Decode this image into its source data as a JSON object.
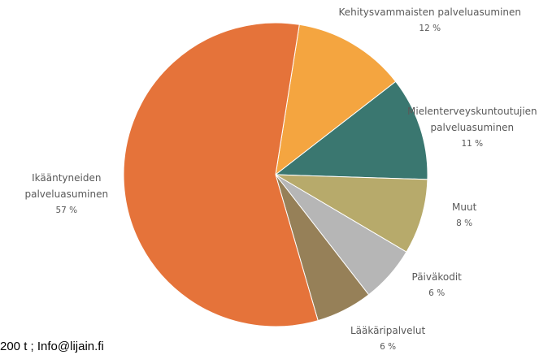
{
  "chart_data": {
    "type": "pie",
    "title": "",
    "slices": [
      {
        "label": "Kehitysvammaisten palveluasuminen",
        "lines": [
          "Kehitysvammaisten palveluasuminen"
        ],
        "value": 12,
        "value_label": "12 %",
        "color": "#f4a540"
      },
      {
        "label": "Mielenterveyskuntoutujien palveluasuminen",
        "lines": [
          "Mielenterveyskuntoutujien",
          "palveluasuminen"
        ],
        "value": 11,
        "value_label": "11 %",
        "color": "#3a7770"
      },
      {
        "label": "Muut",
        "lines": [
          "Muut"
        ],
        "value": 8,
        "value_label": "8 %",
        "color": "#b7aa6b"
      },
      {
        "label": "Päiväkodit",
        "lines": [
          "Päiväkodit"
        ],
        "value": 6,
        "value_label": "6 %",
        "color": "#b6b6b6"
      },
      {
        "label": "Lääkäripalvelut",
        "lines": [
          "Lääkäripalvelut"
        ],
        "value": 6,
        "value_label": "6 %",
        "color": "#968058"
      },
      {
        "label": "Ikääntyneiden palveluasuminen",
        "lines": [
          "Ikääntyneiden",
          "palveluasuminen"
        ],
        "value": 57,
        "value_label": "57 %",
        "color": "#e5733a"
      }
    ]
  },
  "footer": {
    "text": "200 t ; Info@lijain.fi"
  }
}
